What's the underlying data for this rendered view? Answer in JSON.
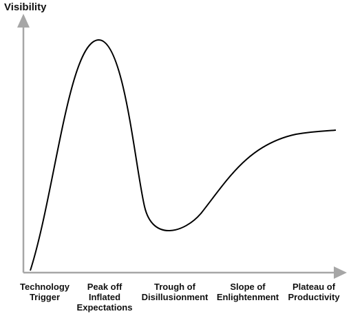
{
  "diagram": {
    "y_axis_label": "Visibility",
    "phases": [
      "Technology\nTrigger",
      "Peak off\nInflated\nExpectations",
      "Trough of\nDisillusionment",
      "Slope of\nEnlightenment",
      "Plateau of\nProductivity"
    ],
    "axis_color": "#a6a6a6",
    "curve_color": "#000000"
  }
}
